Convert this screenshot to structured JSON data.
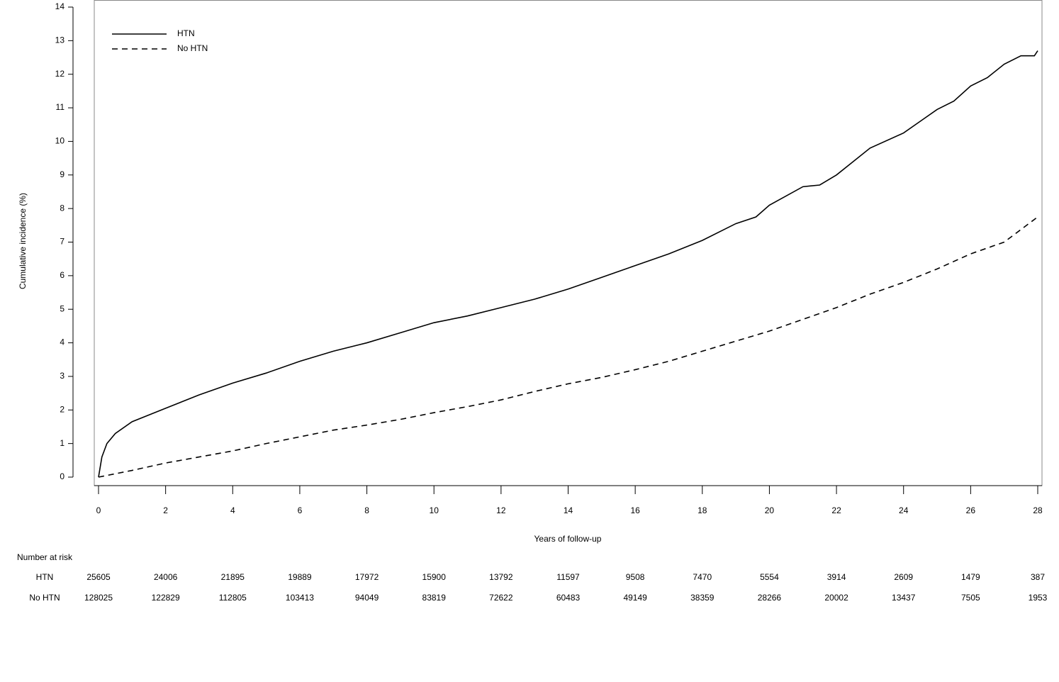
{
  "chart_data": {
    "type": "line",
    "y_label": "Cumulative incidence (%)",
    "x_label": "Years of follow-up",
    "xlim": [
      0,
      28
    ],
    "xticks": [
      0,
      2,
      4,
      6,
      8,
      10,
      12,
      14,
      16,
      18,
      20,
      22,
      24,
      26,
      28
    ],
    "ylim": [
      0,
      14
    ],
    "yticks": [
      0,
      1,
      2,
      3,
      4,
      5,
      6,
      7,
      8,
      9,
      10,
      11,
      12,
      13,
      14
    ],
    "legend": "upper left",
    "series": [
      {
        "name": "HTN",
        "color": "#000000",
        "dash": "solid",
        "x": [
          0,
          0.1,
          0.25,
          0.5,
          1,
          2,
          3,
          4,
          5,
          6,
          7,
          8,
          9,
          10,
          11,
          12,
          13,
          14,
          15,
          16,
          17,
          18,
          19,
          19.6,
          20,
          21,
          21.5,
          22,
          22.5,
          23,
          24,
          24.5,
          25,
          25.5,
          26,
          26.5,
          27,
          27.5,
          27.9,
          28
        ],
        "values": [
          0,
          0.6,
          1.0,
          1.3,
          1.65,
          2.05,
          2.45,
          2.8,
          3.1,
          3.45,
          3.75,
          4.0,
          4.3,
          4.6,
          4.8,
          5.05,
          5.3,
          5.6,
          5.95,
          6.3,
          6.65,
          7.05,
          7.55,
          7.75,
          8.1,
          8.65,
          8.7,
          9.0,
          9.4,
          9.8,
          10.25,
          10.6,
          10.95,
          11.2,
          11.65,
          11.9,
          12.3,
          12.55,
          12.55,
          12.7
        ]
      },
      {
        "name": "No HTN",
        "color": "#000000",
        "dash": "dashed",
        "x": [
          0,
          1,
          2,
          3,
          4,
          5,
          6,
          7,
          8,
          9,
          10,
          11,
          12,
          13,
          14,
          15,
          16,
          17,
          18,
          19,
          20,
          21,
          22,
          23,
          24,
          25,
          26,
          27,
          28
        ],
        "values": [
          0,
          0.2,
          0.42,
          0.6,
          0.78,
          1.0,
          1.2,
          1.4,
          1.55,
          1.72,
          1.92,
          2.1,
          2.3,
          2.55,
          2.78,
          2.97,
          3.2,
          3.45,
          3.75,
          4.05,
          4.35,
          4.7,
          5.05,
          5.45,
          5.8,
          6.2,
          6.65,
          7.0,
          7.75
        ]
      }
    ],
    "risk_table": {
      "title": "Number at risk",
      "rows": [
        {
          "name": "HTN",
          "values": [
            25605,
            24006,
            21895,
            19889,
            17972,
            15900,
            13792,
            11597,
            9508,
            7470,
            5554,
            3914,
            2609,
            1479,
            387
          ]
        },
        {
          "name": "No HTN",
          "values": [
            128025,
            122829,
            112805,
            103413,
            94049,
            83819,
            72622,
            60483,
            49149,
            38359,
            28266,
            20002,
            13437,
            7505,
            1953
          ]
        }
      ]
    }
  }
}
